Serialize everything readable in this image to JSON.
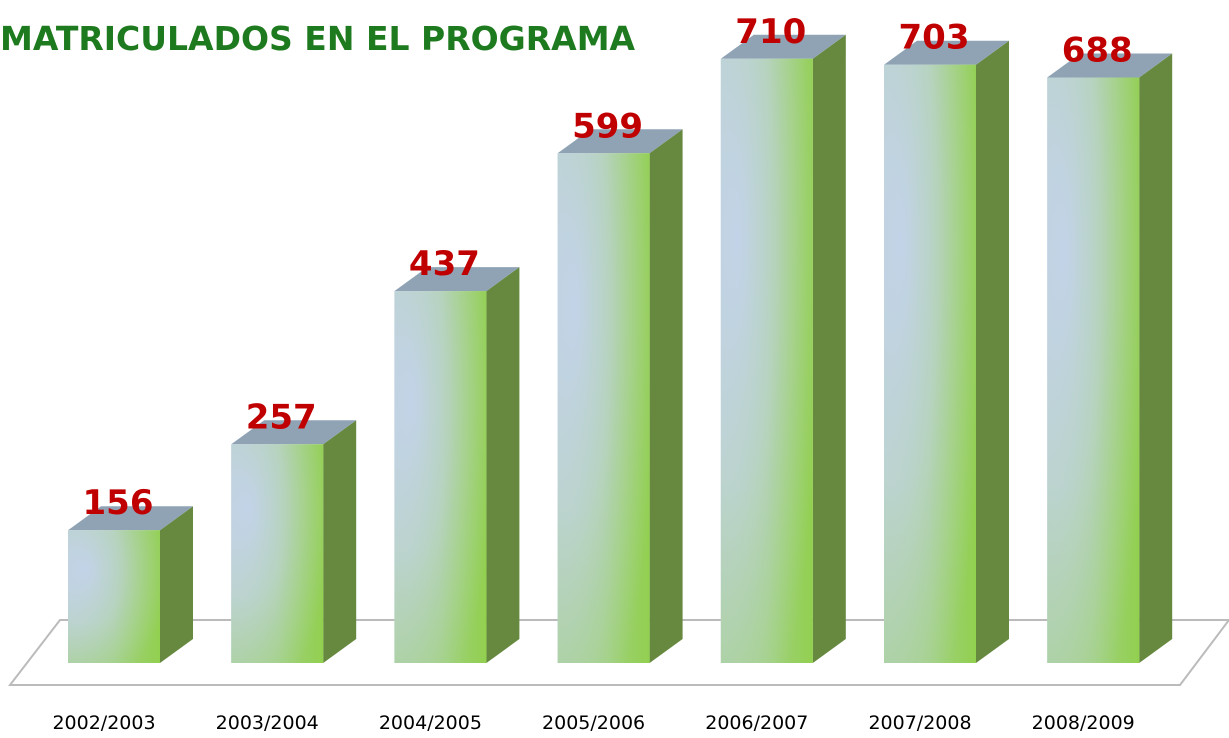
{
  "chart_data": {
    "type": "bar3d",
    "title": "MATRICULADOS EN EL PROGRAMA",
    "categories": [
      "2002/2003",
      "2003/2004",
      "2004/2005",
      "2005/2006",
      "2006/2007",
      "2007/2008",
      "2008/2009"
    ],
    "values": [
      156,
      257,
      437,
      599,
      710,
      703,
      688
    ],
    "color": "#92d050",
    "label_color": "#c00000"
  }
}
